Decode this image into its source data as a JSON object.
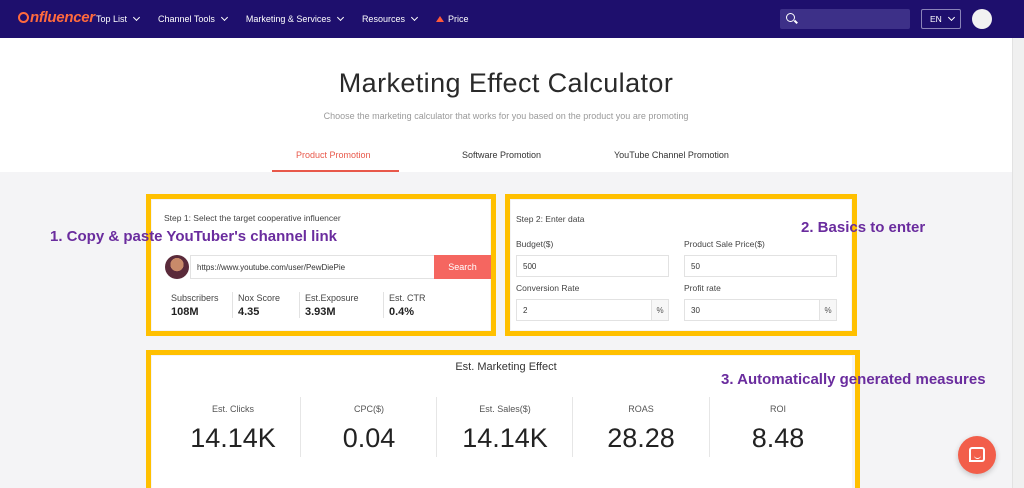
{
  "nav": {
    "logo_text": "nfluencer",
    "items": [
      {
        "label": "Top List"
      },
      {
        "label": "Channel Tools"
      },
      {
        "label": "Marketing & Services"
      },
      {
        "label": "Resources"
      },
      {
        "label": "Price"
      }
    ],
    "language": "EN",
    "search_placeholder": ""
  },
  "header": {
    "title": "Marketing Effect Calculator",
    "subtitle": "Choose the marketing calculator that works for you based on the product you are promoting"
  },
  "tabs": [
    {
      "label": "Product Promotion",
      "active": true
    },
    {
      "label": "Software Promotion",
      "active": false
    },
    {
      "label": "YouTube Channel Promotion",
      "active": false
    }
  ],
  "step1": {
    "label": "Step 1: Select the target cooperative influencer",
    "url_value": "https://www.youtube.com/user/PewDiePie",
    "search_label": "Search",
    "stats": [
      {
        "label": "Subscribers",
        "value": "108M"
      },
      {
        "label": "Nox Score",
        "value": "4.35"
      },
      {
        "label": "Est.Exposure",
        "value": "3.93M"
      },
      {
        "label": "Est. CTR",
        "value": "0.4%"
      }
    ]
  },
  "step2": {
    "label": "Step 2: Enter data",
    "fields": {
      "budget": {
        "label": "Budget($)",
        "value": "500"
      },
      "sale_price": {
        "label": "Product Sale Price($)",
        "value": "50"
      },
      "conversion": {
        "label": "Conversion Rate",
        "value": "2",
        "unit": "%"
      },
      "profit": {
        "label": "Profit rate",
        "value": "30",
        "unit": "%"
      }
    }
  },
  "effect": {
    "title": "Est. Marketing Effect",
    "metrics": [
      {
        "label": "Est. Clicks",
        "value": "14.14K"
      },
      {
        "label": "CPC($)",
        "value": "0.04"
      },
      {
        "label": "Est. Sales($)",
        "value": "14.14K"
      },
      {
        "label": "ROAS",
        "value": "28.28"
      },
      {
        "label": "ROI",
        "value": "8.48"
      }
    ]
  },
  "annotations": {
    "one": "1. Copy & paste YouTuber's channel link",
    "two": "2. Basics to enter",
    "three": "3. Automatically generated measures"
  },
  "colors": {
    "nav_bg": "#1e0f6d",
    "accent": "#e8584a",
    "highlight": "#ffc000",
    "annotation": "#6a2c9e"
  }
}
